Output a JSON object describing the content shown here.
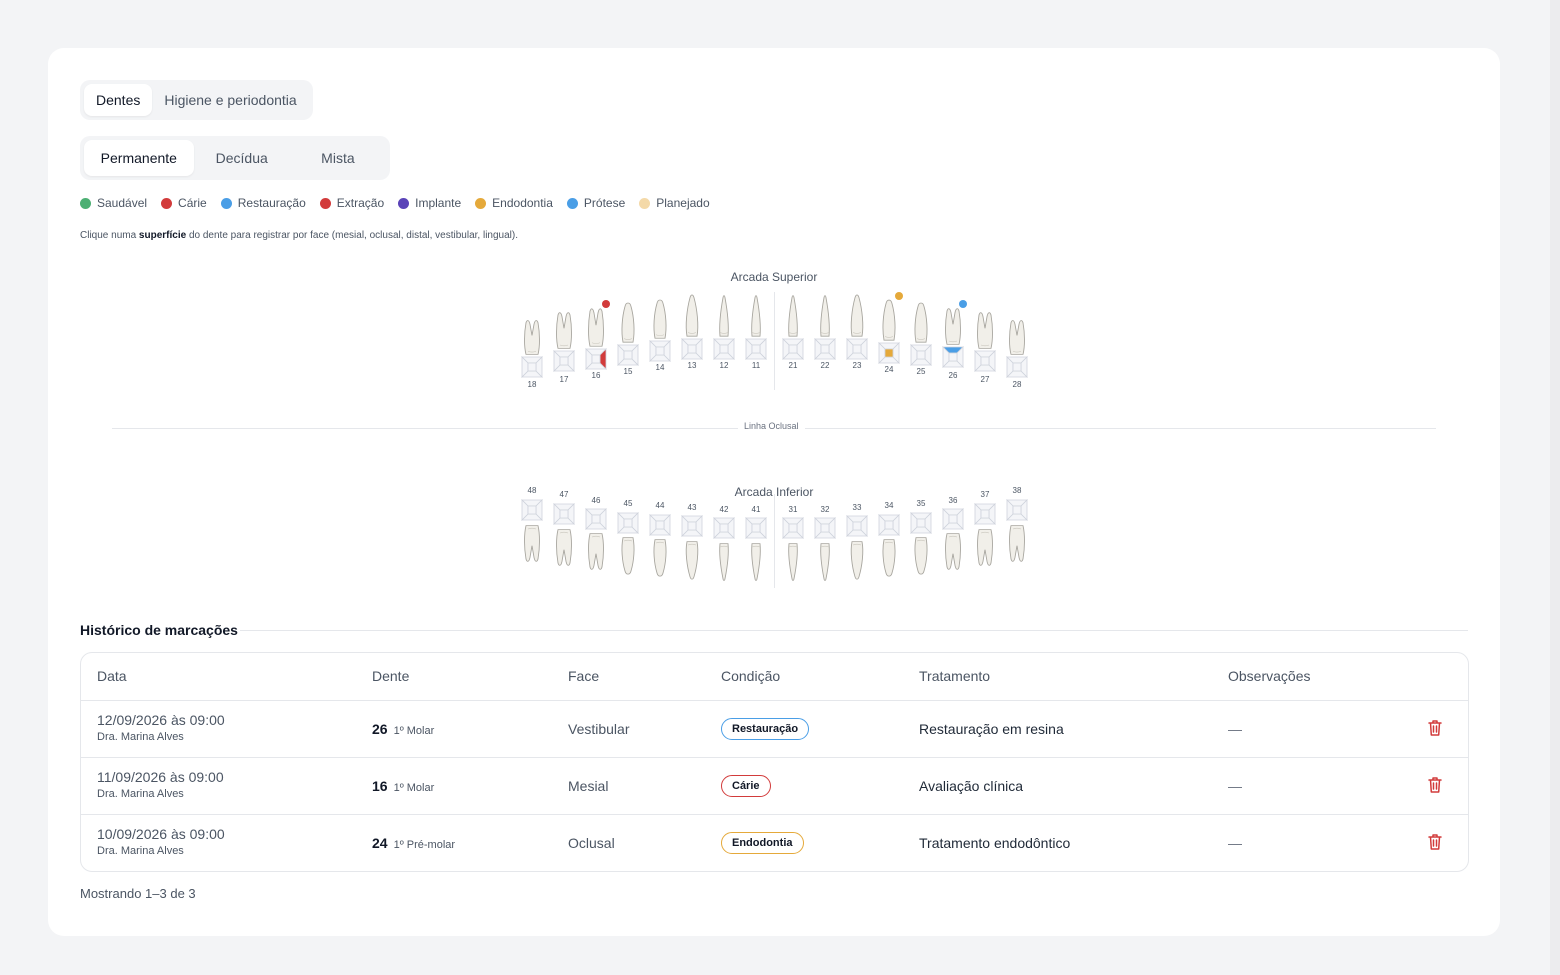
{
  "tabs_primary": [
    {
      "label": "Dentes",
      "active": true
    },
    {
      "label": "Higiene e periodontia",
      "active": false
    }
  ],
  "tabs_secondary": [
    {
      "label": "Permanente",
      "active": true
    },
    {
      "label": "Decídua",
      "active": false
    },
    {
      "label": "Mista",
      "active": false
    }
  ],
  "legend": [
    {
      "label": "Saudável",
      "color": "#4caf73"
    },
    {
      "label": "Cárie",
      "color": "#d23b3b"
    },
    {
      "label": "Restauração",
      "color": "#4a9ee6"
    },
    {
      "label": "Extração",
      "color": "#d23b3b"
    },
    {
      "label": "Implante",
      "color": "#5a43b8"
    },
    {
      "label": "Endodontia",
      "color": "#e5a93a"
    },
    {
      "label": "Prótese",
      "color": "#4a9ee6"
    },
    {
      "label": "Planejado",
      "color": "#f4d9a8"
    }
  ],
  "hint": {
    "before": "Clique numa ",
    "bold": "superfície",
    "after": " do dente para registrar por face (mesial, oclusal, distal, vestibular, lingual)."
  },
  "chart": {
    "upper_label": "Arcada Superior",
    "lower_label": "Arcada Inferior",
    "occlusal_label": "Linha Oclusal",
    "upper_teeth": [
      "18",
      "17",
      "16",
      "15",
      "14",
      "13",
      "12",
      "11",
      "21",
      "22",
      "23",
      "24",
      "25",
      "26",
      "27",
      "28"
    ],
    "lower_teeth": [
      "48",
      "47",
      "46",
      "45",
      "44",
      "43",
      "42",
      "41",
      "31",
      "32",
      "33",
      "34",
      "35",
      "36",
      "37",
      "38"
    ],
    "marks": [
      {
        "tooth": "16",
        "condition": "Cárie",
        "face": "Mesial",
        "color": "#d23b3b"
      },
      {
        "tooth": "24",
        "condition": "Endodontia",
        "face": "Oclusal",
        "color": "#e5a93a"
      },
      {
        "tooth": "26",
        "condition": "Restauração",
        "face": "Vestibular",
        "color": "#4a9ee6"
      }
    ]
  },
  "history": {
    "title": "Histórico de marcações",
    "columns": [
      "Data",
      "Dente",
      "Face",
      "Condição",
      "Tratamento",
      "Observações"
    ],
    "rows": [
      {
        "date": "12/09/2026 às 09:00",
        "author": "Dra. Marina Alves",
        "tooth": "26",
        "tooth_type": "1º Molar",
        "face": "Vestibular",
        "condition": "Restauração",
        "condition_color": "#4a9ee6",
        "treatment": "Restauração em resina",
        "notes": "—"
      },
      {
        "date": "11/09/2026 às 09:00",
        "author": "Dra. Marina Alves",
        "tooth": "16",
        "tooth_type": "1º Molar",
        "face": "Mesial",
        "condition": "Cárie",
        "condition_color": "#d23b3b",
        "treatment": "Avaliação clínica",
        "notes": "—"
      },
      {
        "date": "10/09/2026 às 09:00",
        "author": "Dra. Marina Alves",
        "tooth": "24",
        "tooth_type": "1º Pré-molar",
        "face": "Oclusal",
        "condition": "Endodontia",
        "condition_color": "#e5a93a",
        "treatment": "Tratamento endodôntico",
        "notes": "—"
      }
    ],
    "pager": "Mostrando 1–3 de 3"
  }
}
